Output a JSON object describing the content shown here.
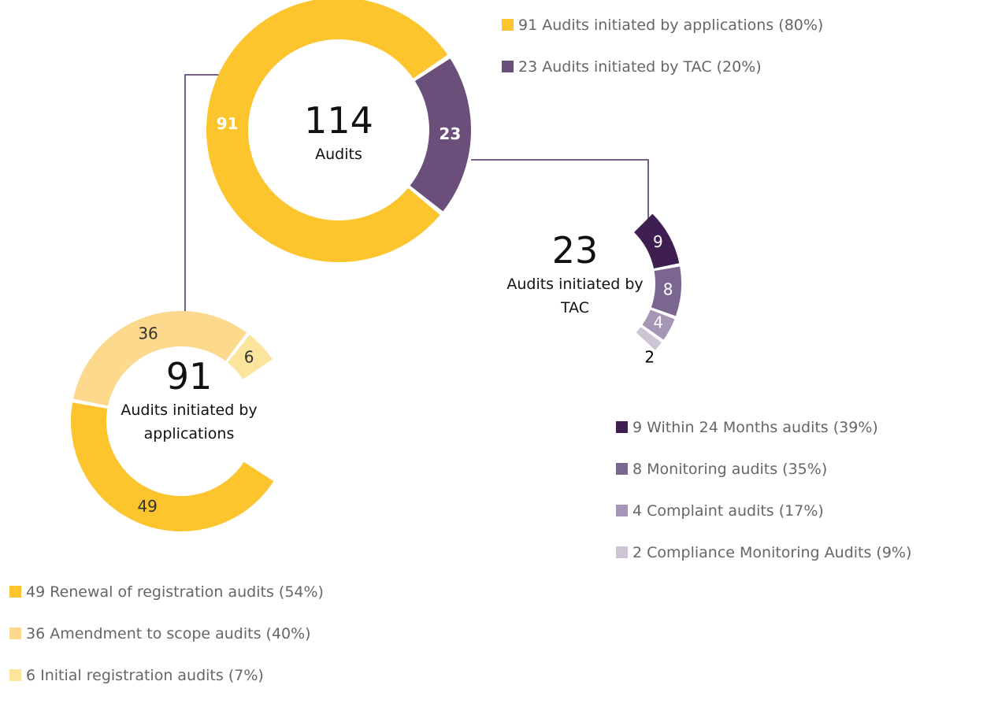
{
  "chart_data": [
    {
      "type": "donut",
      "center_value": 114,
      "center_label": "Audits",
      "categories": [
        "91 Audits initiated by applications (80%)",
        "23 Audits initiated by TAC (20%)"
      ],
      "values": [
        91,
        23
      ],
      "colors": [
        "#fcc42d",
        "#6b4f7b"
      ]
    },
    {
      "type": "donut",
      "center_value": 23,
      "center_label": "Audits initiated by TAC",
      "categories": [
        "9 Within 24 Months audits (39%)",
        "8 Monitoring audits (35%)",
        "4 Complaint audits (17%)",
        "2 Compliance Monitoring Audits (9%)"
      ],
      "values": [
        9,
        8,
        4,
        2
      ],
      "colors": [
        "#3f1f52",
        "#7b6690",
        "#a496b4",
        "#cdc4d5"
      ]
    },
    {
      "type": "donut",
      "center_value": 91,
      "center_label": "Audits initiated by applications",
      "categories": [
        "49 Renewal of registration audits (54%)",
        "36 Amendment to scope audits (40%)",
        "6 Initial registration audits (7%)"
      ],
      "values": [
        49,
        36,
        6
      ],
      "colors": [
        "#fcc42d",
        "#fdd98e",
        "#fbe49c"
      ]
    }
  ]
}
